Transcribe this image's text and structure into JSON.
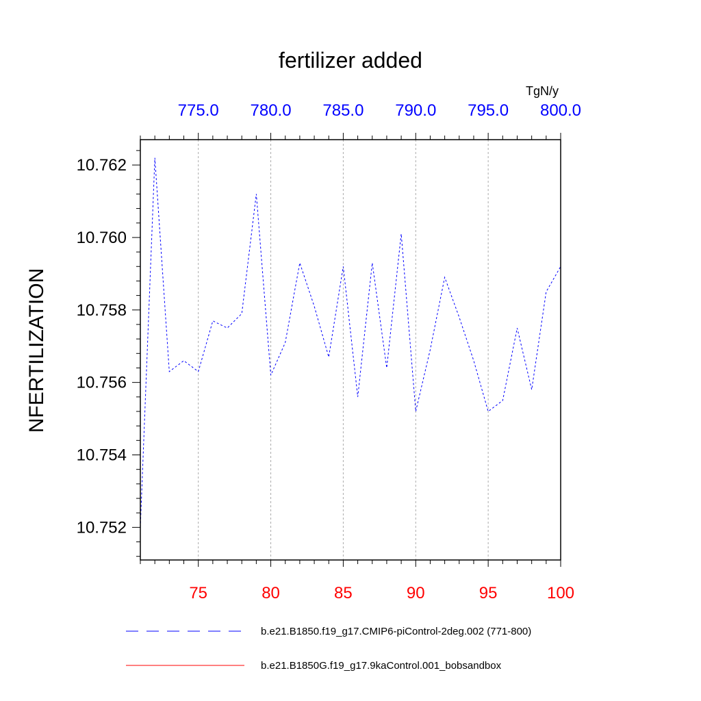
{
  "chart_data": {
    "type": "line",
    "title": "fertilizer added",
    "units_label": "TgN/y",
    "ylabel": "NFERTILIZATION",
    "xlabel": "",
    "xlim": [
      71,
      100
    ],
    "ylim": [
      10.7511,
      10.7627
    ],
    "x_ticks_bottom": [
      75,
      80,
      85,
      90,
      95,
      100
    ],
    "x_tick_labels_bottom": [
      "75",
      "80",
      "85",
      "90",
      "95",
      "100"
    ],
    "x_ticks_top": [
      775,
      780,
      785,
      790,
      795,
      800
    ],
    "x_tick_labels_top": [
      "775.0",
      "780.0",
      "785.0",
      "790.0",
      "795.0",
      "800.0"
    ],
    "top_axis_offset": 700,
    "y_ticks": [
      10.752,
      10.754,
      10.756,
      10.758,
      10.76,
      10.762
    ],
    "y_tick_labels": [
      "10.752",
      "10.754",
      "10.756",
      "10.758",
      "10.760",
      "10.762"
    ],
    "grid": "vertical dashed at major x ticks",
    "colors": {
      "series1": "#0000ff",
      "series2": "#ff0000",
      "bottom_ticks": "#ff0000",
      "top_ticks": "#0000ff",
      "grid": "#aaaaaa"
    },
    "series": [
      {
        "name": "b.e21.B1850.f19_g17.CMIP6-piControl-2deg.002 (771-800)",
        "style": "dashed",
        "x": [
          71,
          72,
          73,
          74,
          75,
          76,
          77,
          78,
          79,
          80,
          81,
          82,
          83,
          84,
          85,
          86,
          87,
          88,
          89,
          90,
          91,
          92,
          93,
          94,
          95,
          96,
          97,
          98,
          99,
          100
        ],
        "values": [
          10.752,
          10.7622,
          10.7563,
          10.7566,
          10.7563,
          10.7577,
          10.7575,
          10.7579,
          10.7612,
          10.7562,
          10.7571,
          10.7593,
          10.7581,
          10.7567,
          10.7592,
          10.7556,
          10.7593,
          10.7564,
          10.7601,
          10.7552,
          10.7569,
          10.7589,
          10.7578,
          10.7566,
          10.7552,
          10.7555,
          10.7575,
          10.7558,
          10.7585,
          10.7592
        ]
      },
      {
        "name": "b.e21.B1850G.f19_g17.9kaControl.001_bobsandbox",
        "style": "solid",
        "x": [],
        "values": []
      }
    ],
    "legend": "bottom"
  }
}
